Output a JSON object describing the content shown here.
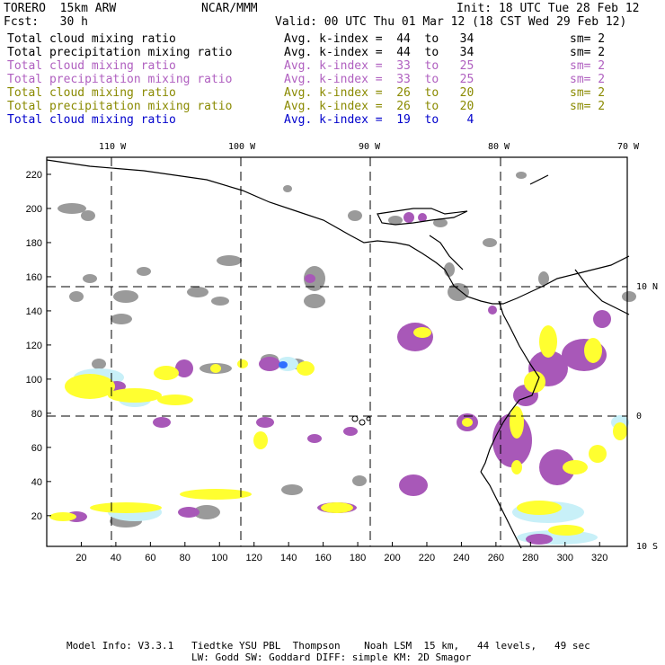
{
  "header": {
    "model": "TORERO  15km ARW",
    "org": "NCAR/MMM",
    "init": "Init: 18 UTC Tue 28 Feb 12",
    "fcst": "Fcst:   30 h",
    "valid": "Valid: 00 UTC Thu 01 Mar 12 (18 CST Wed 29 Feb 12)"
  },
  "legend": [
    {
      "field": "Total cloud mixing ratio",
      "kindex": "Avg. k-index =  44  to   34",
      "sm": "sm= 2",
      "color": "#000000"
    },
    {
      "field": "Total precipitation mixing ratio",
      "kindex": "Avg. k-index =  44  to   34",
      "sm": "sm= 2",
      "color": "#000000"
    },
    {
      "field": "Total cloud mixing ratio",
      "kindex": "Avg. k-index =  33  to   25",
      "sm": "sm= 2",
      "color": "#b060c0"
    },
    {
      "field": "Total precipitation mixing ratio",
      "kindex": "Avg. k-index =  33  to   25",
      "sm": "sm= 2",
      "color": "#b060c0"
    },
    {
      "field": "Total cloud mixing ratio",
      "kindex": "Avg. k-index =  26  to   20",
      "sm": "sm= 2",
      "color": "#8a8a00"
    },
    {
      "field": "Total precipitation mixing ratio",
      "kindex": "Avg. k-index =  26  to   20",
      "sm": "sm= 2",
      "color": "#8a8a00"
    },
    {
      "field": "Total cloud mixing ratio",
      "kindex": "Avg. k-index =  19  to    4",
      "sm": "",
      "color": "#0000cc"
    }
  ],
  "map": {
    "lon_labels": [
      "110 W",
      "100 W",
      "90 W",
      "80 W",
      "70 W"
    ],
    "lat_labels": [
      "10 N",
      "0",
      "10 S"
    ],
    "x_ticks": [
      "20",
      "40",
      "60",
      "80",
      "100",
      "120",
      "140",
      "160",
      "180",
      "200",
      "220",
      "240",
      "260",
      "280",
      "300",
      "320"
    ],
    "y_ticks": [
      "220",
      "200",
      "180",
      "160",
      "140",
      "120",
      "100",
      "80",
      "60",
      "40",
      "20"
    ],
    "colors": {
      "gray": "#9a9a9a",
      "purple": "#a858b8",
      "yellow": "#ffff30",
      "lightblue": "#c8f0f8",
      "blue": "#3070ff"
    }
  },
  "footer": {
    "line1": "Model Info: V3.3.1   Tiedtke YSU PBL  Thompson    Noah LSM  15 km,   44 levels,   49 sec",
    "line2": "LW: Godd SW: Goddard DIFF: simple KM: 2D Smagor"
  }
}
